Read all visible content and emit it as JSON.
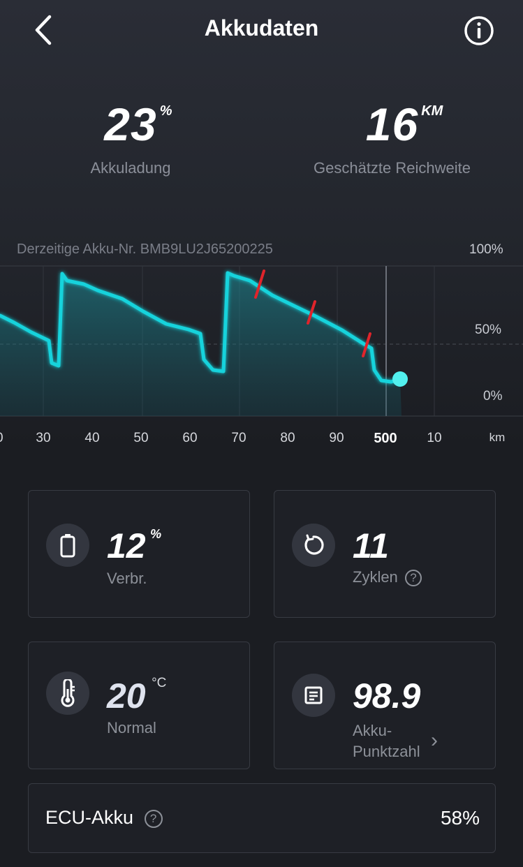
{
  "header": {
    "title": "Akkudaten"
  },
  "summary": {
    "charge": {
      "value": "23",
      "unit": "%",
      "label": "Akkuladung"
    },
    "range": {
      "value": "16",
      "unit": "KM",
      "label": "Geschätzte Reichweite"
    }
  },
  "chart": {
    "battery_id_label": "Derzeitige Akku-Nr. BMB9LU2J65200225",
    "y_labels": [
      "100%",
      "50%",
      "0%"
    ],
    "x_ticks": [
      "0",
      "30",
      "40",
      "50",
      "60",
      "70",
      "80",
      "90",
      "500",
      "10"
    ],
    "x_unit": "km",
    "line_color": "#19d3dc",
    "marker_color": "#e0242b"
  },
  "chart_data": {
    "type": "area",
    "ylabel": "",
    "xlabel": "km",
    "ylim": [
      0,
      100
    ],
    "x": [
      20,
      25,
      30,
      32,
      33,
      34,
      40,
      50,
      60,
      62,
      63,
      67,
      68,
      70,
      80,
      90,
      95,
      96,
      97,
      500
    ],
    "values": [
      62,
      56,
      48,
      48,
      33,
      90,
      83,
      69,
      57,
      42,
      33,
      90,
      88,
      83,
      66,
      50,
      40,
      28,
      22,
      23
    ]
  },
  "stats": {
    "consumption": {
      "value": "12",
      "unit": "%",
      "label": "Verbr.",
      "icon": "battery-icon"
    },
    "cycles": {
      "value": "11",
      "label": "Zyklen",
      "help": "?",
      "icon": "refresh-icon"
    },
    "temperature": {
      "value": "20",
      "unit": "°C",
      "label": "Normal",
      "icon": "thermometer-icon"
    },
    "score": {
      "value": "98.9",
      "label_line1": "Akku-",
      "label_line2": "Punktzahl",
      "arrow": "›",
      "icon": "document-icon"
    }
  },
  "ecu": {
    "label": "ECU-Akku",
    "help": "?",
    "value": "58%"
  }
}
